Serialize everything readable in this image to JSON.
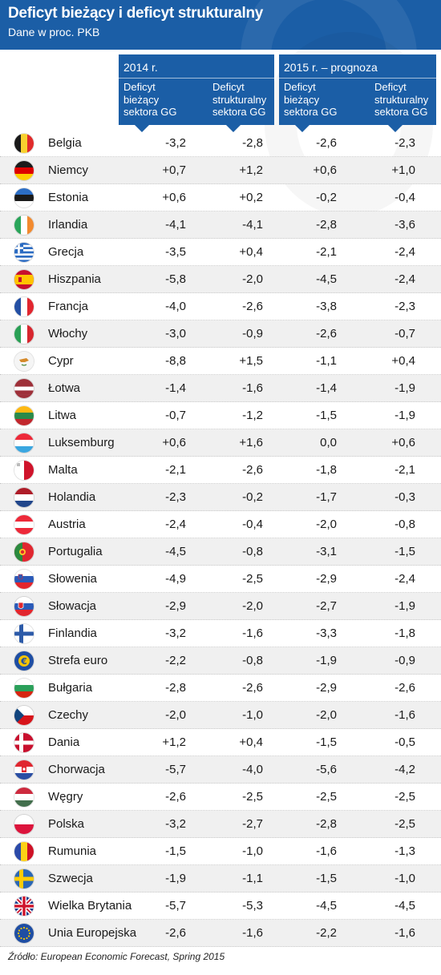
{
  "title": "Deficyt bieżący i deficyt strukturalny",
  "subtitle": "Dane w proc. PKB",
  "groups": [
    {
      "year": "2014 r.",
      "col_a": [
        "Deficyt",
        "bieżący",
        "sektora GG"
      ],
      "col_b": [
        "Deficyt",
        "strukturalny",
        "sektora GG"
      ]
    },
    {
      "year": "2015 r. – prognoza",
      "col_a": [
        "Deficyt",
        "bieżący",
        "sektora GG"
      ],
      "col_b": [
        "Deficyt",
        "strukturalny",
        "sektora GG"
      ]
    }
  ],
  "source": "Źródło: European Economic Forecast, Spring 2015",
  "chart_data": {
    "type": "table",
    "columns": [
      "2014 r. Deficyt bieżący sektora GG",
      "2014 r. Deficyt strukturalny sektora GG",
      "2015 r. – prognoza Deficyt bieżący sektora GG",
      "2015 r. – prognoza Deficyt strukturalny sektora GG"
    ],
    "rows": [
      {
        "country": "Belgia",
        "flag": "be",
        "values": [
          "-3,2",
          "-2,8",
          "-2,6",
          "-2,3"
        ]
      },
      {
        "country": "Niemcy",
        "flag": "de",
        "values": [
          "+0,7",
          "+1,2",
          "+0,6",
          "+1,0"
        ]
      },
      {
        "country": "Estonia",
        "flag": "ee",
        "values": [
          "+0,6",
          "+0,2",
          "-0,2",
          "-0,4"
        ]
      },
      {
        "country": "Irlandia",
        "flag": "ie",
        "values": [
          "-4,1",
          "-4,1",
          "-2,8",
          "-3,6"
        ]
      },
      {
        "country": "Grecja",
        "flag": "gr",
        "values": [
          "-3,5",
          "+0,4",
          "-2,1",
          "-2,4"
        ]
      },
      {
        "country": "Hiszpania",
        "flag": "es",
        "values": [
          "-5,8",
          "-2,0",
          "-4,5",
          "-2,4"
        ]
      },
      {
        "country": "Francja",
        "flag": "fr",
        "values": [
          "-4,0",
          "-2,6",
          "-3,8",
          "-2,3"
        ]
      },
      {
        "country": "Włochy",
        "flag": "it",
        "values": [
          "-3,0",
          "-0,9",
          "-2,6",
          "-0,7"
        ]
      },
      {
        "country": "Cypr",
        "flag": "cy",
        "values": [
          "-8,8",
          "+1,5",
          "-1,1",
          "+0,4"
        ]
      },
      {
        "country": "Łotwa",
        "flag": "lv",
        "values": [
          "-1,4",
          "-1,6",
          "-1,4",
          "-1,9"
        ]
      },
      {
        "country": "Litwa",
        "flag": "lt",
        "values": [
          "-0,7",
          "-1,2",
          "-1,5",
          "-1,9"
        ]
      },
      {
        "country": "Luksemburg",
        "flag": "lu",
        "values": [
          "+0,6",
          "+1,6",
          "0,0",
          "+0,6"
        ]
      },
      {
        "country": "Malta",
        "flag": "mt",
        "values": [
          "-2,1",
          "-2,6",
          "-1,8",
          "-2,1"
        ]
      },
      {
        "country": "Holandia",
        "flag": "nl",
        "values": [
          "-2,3",
          "-0,2",
          "-1,7",
          "-0,3"
        ]
      },
      {
        "country": "Austria",
        "flag": "at",
        "values": [
          "-2,4",
          "-0,4",
          "-2,0",
          "-0,8"
        ]
      },
      {
        "country": "Portugalia",
        "flag": "pt",
        "values": [
          "-4,5",
          "-0,8",
          "-3,1",
          "-1,5"
        ]
      },
      {
        "country": "Słowenia",
        "flag": "si",
        "values": [
          "-4,9",
          "-2,5",
          "-2,9",
          "-2,4"
        ]
      },
      {
        "country": "Słowacja",
        "flag": "sk",
        "values": [
          "-2,9",
          "-2,0",
          "-2,7",
          "-1,9"
        ]
      },
      {
        "country": "Finlandia",
        "flag": "fi",
        "values": [
          "-3,2",
          "-1,6",
          "-3,3",
          "-1,8"
        ]
      },
      {
        "country": "Strefa euro",
        "flag": "euro",
        "values": [
          "-2,2",
          "-0,8",
          "-1,9",
          "-0,9"
        ]
      },
      {
        "country": "Bułgaria",
        "flag": "bg",
        "values": [
          "-2,8",
          "-2,6",
          "-2,9",
          "-2,6"
        ]
      },
      {
        "country": "Czechy",
        "flag": "cz",
        "values": [
          "-2,0",
          "-1,0",
          "-2,0",
          "-1,6"
        ]
      },
      {
        "country": "Dania",
        "flag": "dk",
        "values": [
          "+1,2",
          "+0,4",
          "-1,5",
          "-0,5"
        ]
      },
      {
        "country": "Chorwacja",
        "flag": "hr",
        "values": [
          "-5,7",
          "-4,0",
          "-5,6",
          "-4,2"
        ]
      },
      {
        "country": "Węgry",
        "flag": "hu",
        "values": [
          "-2,6",
          "-2,5",
          "-2,5",
          "-2,5"
        ]
      },
      {
        "country": "Polska",
        "flag": "pl",
        "values": [
          "-3,2",
          "-2,7",
          "-2,8",
          "-2,5"
        ]
      },
      {
        "country": "Rumunia",
        "flag": "ro",
        "values": [
          "-1,5",
          "-1,0",
          "-1,6",
          "-1,3"
        ]
      },
      {
        "country": "Szwecja",
        "flag": "se",
        "values": [
          "-1,9",
          "-1,1",
          "-1,5",
          "-1,0"
        ]
      },
      {
        "country": "Wielka Brytania",
        "flag": "gb",
        "values": [
          "-5,7",
          "-5,3",
          "-4,5",
          "-4,5"
        ]
      },
      {
        "country": "Unia Europejska",
        "flag": "eu",
        "values": [
          "-2,6",
          "-1,6",
          "-2,2",
          "-1,6"
        ]
      }
    ]
  }
}
